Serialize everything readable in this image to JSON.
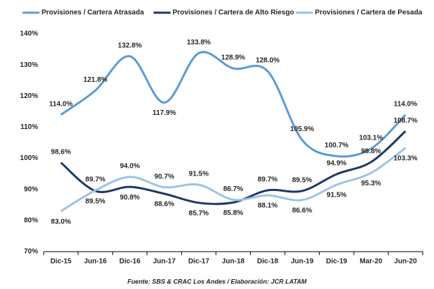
{
  "chart_data": {
    "type": "line",
    "categories": [
      "Dic-15",
      "Jun-16",
      "Dic-16",
      "Jun-17",
      "Dic-17",
      "Jun-18",
      "Dic-18",
      "Jun-19",
      "Dic-19",
      "Mar-20",
      "Jun-20"
    ],
    "series": [
      {
        "name": "Provisiones / Cartera Atrasada",
        "color": "#5b9bd5",
        "values": [
          114.0,
          121.8,
          132.8,
          117.9,
          133.8,
          128.9,
          128.0,
          105.9,
          100.7,
          103.1,
          114.0
        ],
        "value_labels": [
          "114.0%",
          "121.8%",
          "132.8%",
          "117.9%",
          "133.8%",
          "128.9%",
          "128.0%",
          "105.9%",
          "100.7%",
          "103.1%",
          "114.0%"
        ]
      },
      {
        "name": "Provisiones / Cartera de Alto Riesgo",
        "color": "#1f3864",
        "values": [
          98.6,
          89.5,
          90.8,
          88.6,
          85.7,
          85.8,
          89.7,
          89.5,
          94.9,
          98.8,
          108.7
        ],
        "value_labels": [
          "98.6%",
          "89.5%",
          "90.8%",
          "88.6%",
          "85.7%",
          "85.8%",
          "89.7%",
          "89.5%",
          "94.9%",
          "98.8%",
          "108.7%"
        ]
      },
      {
        "name": "Provisiones / Cartera de Pesada",
        "color": "#9dc3e6",
        "values": [
          83.0,
          89.7,
          94.0,
          90.7,
          91.5,
          86.7,
          88.1,
          86.6,
          91.5,
          95.3,
          103.3
        ],
        "value_labels": [
          "83.0%",
          "89.7%",
          "94.0%",
          "90.7%",
          "91.5%",
          "86.7%",
          "88.1%",
          "86.6%",
          "91.5%",
          "95.3%",
          "103.3%"
        ]
      }
    ],
    "ylim": [
      70,
      140
    ],
    "yticks": [
      {
        "value": 70,
        "label": "70%"
      },
      {
        "value": 80,
        "label": "80%"
      },
      {
        "value": 90,
        "label": "90%"
      },
      {
        "value": 100,
        "label": "100%"
      },
      {
        "value": 110,
        "label": "110%"
      },
      {
        "value": 120,
        "label": "120%"
      },
      {
        "value": 130,
        "label": "130%"
      },
      {
        "value": 140,
        "label": "140%"
      }
    ],
    "grid": false,
    "legend": "top",
    "source": "Fuente: SBS & CRAC Los Andes / Elaboración: JCR LATAM"
  }
}
